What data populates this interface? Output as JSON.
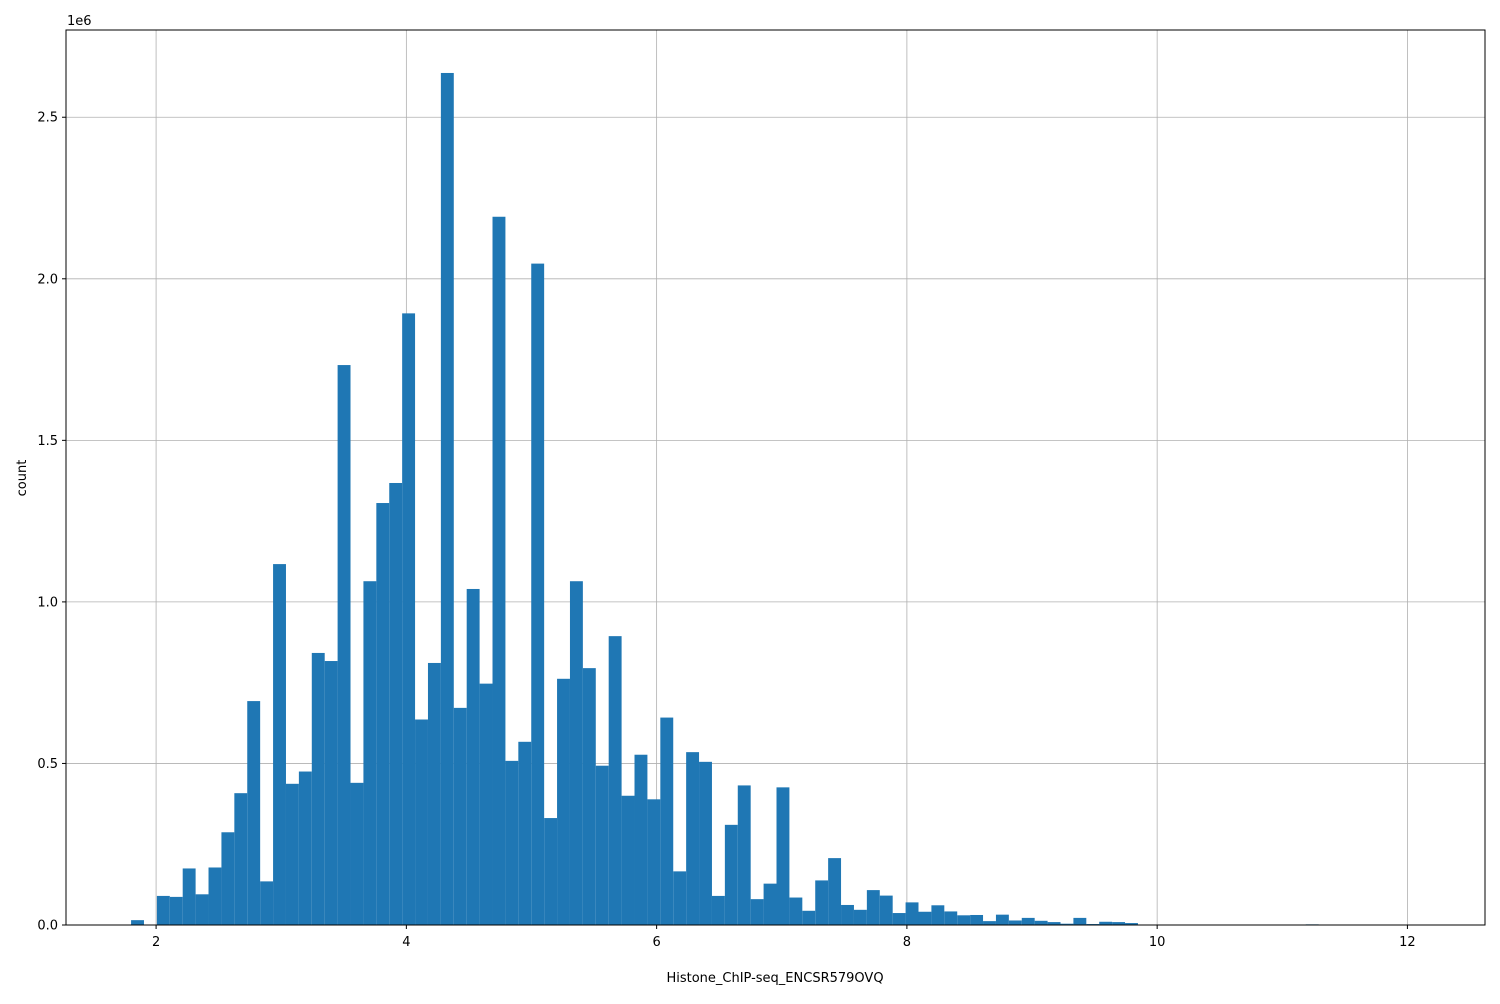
{
  "chart_data": {
    "type": "bar",
    "xlabel": "Histone_ChIP-seq_ENCSR579OVQ",
    "ylabel": "count",
    "y_offset_label": "1e6",
    "xlim": [
      1.28,
      12.62
    ],
    "ylim": [
      0,
      2770000
    ],
    "xticks": [
      2,
      4,
      6,
      8,
      10,
      12
    ],
    "xtick_labels": [
      "2",
      "4",
      "6",
      "8",
      "10",
      "12"
    ],
    "yticks": [
      0,
      500000,
      1000000,
      1500000,
      2000000,
      2500000
    ],
    "ytick_labels": [
      "0.0",
      "0.5",
      "1.0",
      "1.5",
      "2.0",
      "2.5"
    ],
    "grid": true,
    "bar_color": "#1f77b4",
    "bin_start": 1.8,
    "bin_width": 0.10316,
    "values": [
      15000,
      0,
      90000,
      87000,
      175000,
      95000,
      178000,
      287000,
      408000,
      693000,
      135000,
      1117000,
      437000,
      475000,
      842000,
      817000,
      1733000,
      440000,
      1064000,
      1306000,
      1368000,
      1893000,
      636000,
      811000,
      2637000,
      672000,
      1040000,
      747000,
      2192000,
      508000,
      567000,
      2047000,
      331000,
      762000,
      1064000,
      795000,
      493000,
      894000,
      400000,
      527000,
      389000,
      642000,
      166000,
      535000,
      505000,
      90000,
      310000,
      432000,
      80000,
      128000,
      426000,
      85000,
      44000,
      138000,
      207000,
      62000,
      47000,
      108000,
      91000,
      37000,
      70000,
      41000,
      61000,
      42000,
      30000,
      31000,
      12000,
      32000,
      14000,
      22000,
      13000,
      9000,
      4000,
      22000,
      3000,
      10000,
      9000,
      6000,
      0,
      0,
      0,
      0,
      0,
      0,
      0,
      0,
      0,
      0,
      0,
      0,
      0,
      2000,
      0,
      0,
      0,
      0,
      0,
      0,
      0,
      0,
      0
    ]
  }
}
